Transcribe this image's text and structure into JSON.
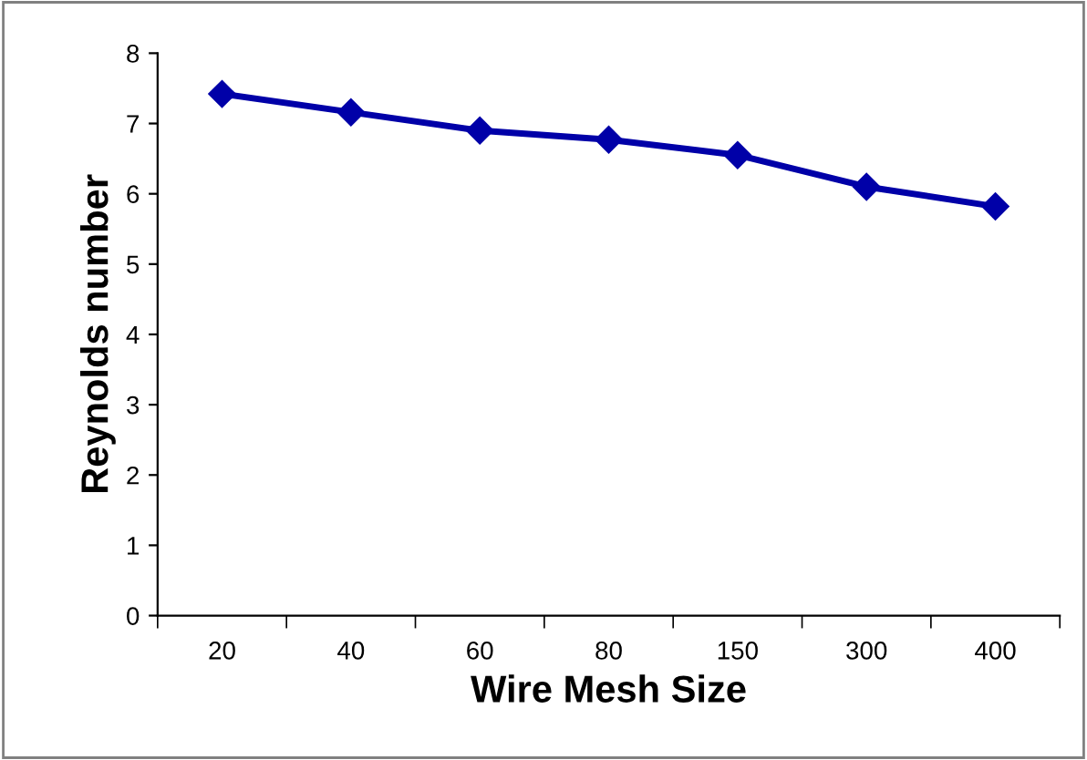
{
  "chart_data": {
    "type": "line",
    "xlabel": "Wire Mesh Size",
    "ylabel": "Reynolds number",
    "categories": [
      "20",
      "40",
      "60",
      "80",
      "150",
      "300",
      "400"
    ],
    "series": [
      {
        "color": "#0000a8",
        "values": [
          7.42,
          7.16,
          6.9,
          6.77,
          6.55,
          6.1,
          5.82
        ]
      }
    ],
    "ylim": [
      0,
      8
    ],
    "yticks": [
      0,
      1,
      2,
      3,
      4,
      5,
      6,
      7,
      8
    ],
    "grid": false,
    "legend": false,
    "marker": "diamond",
    "line_style": "solid"
  }
}
